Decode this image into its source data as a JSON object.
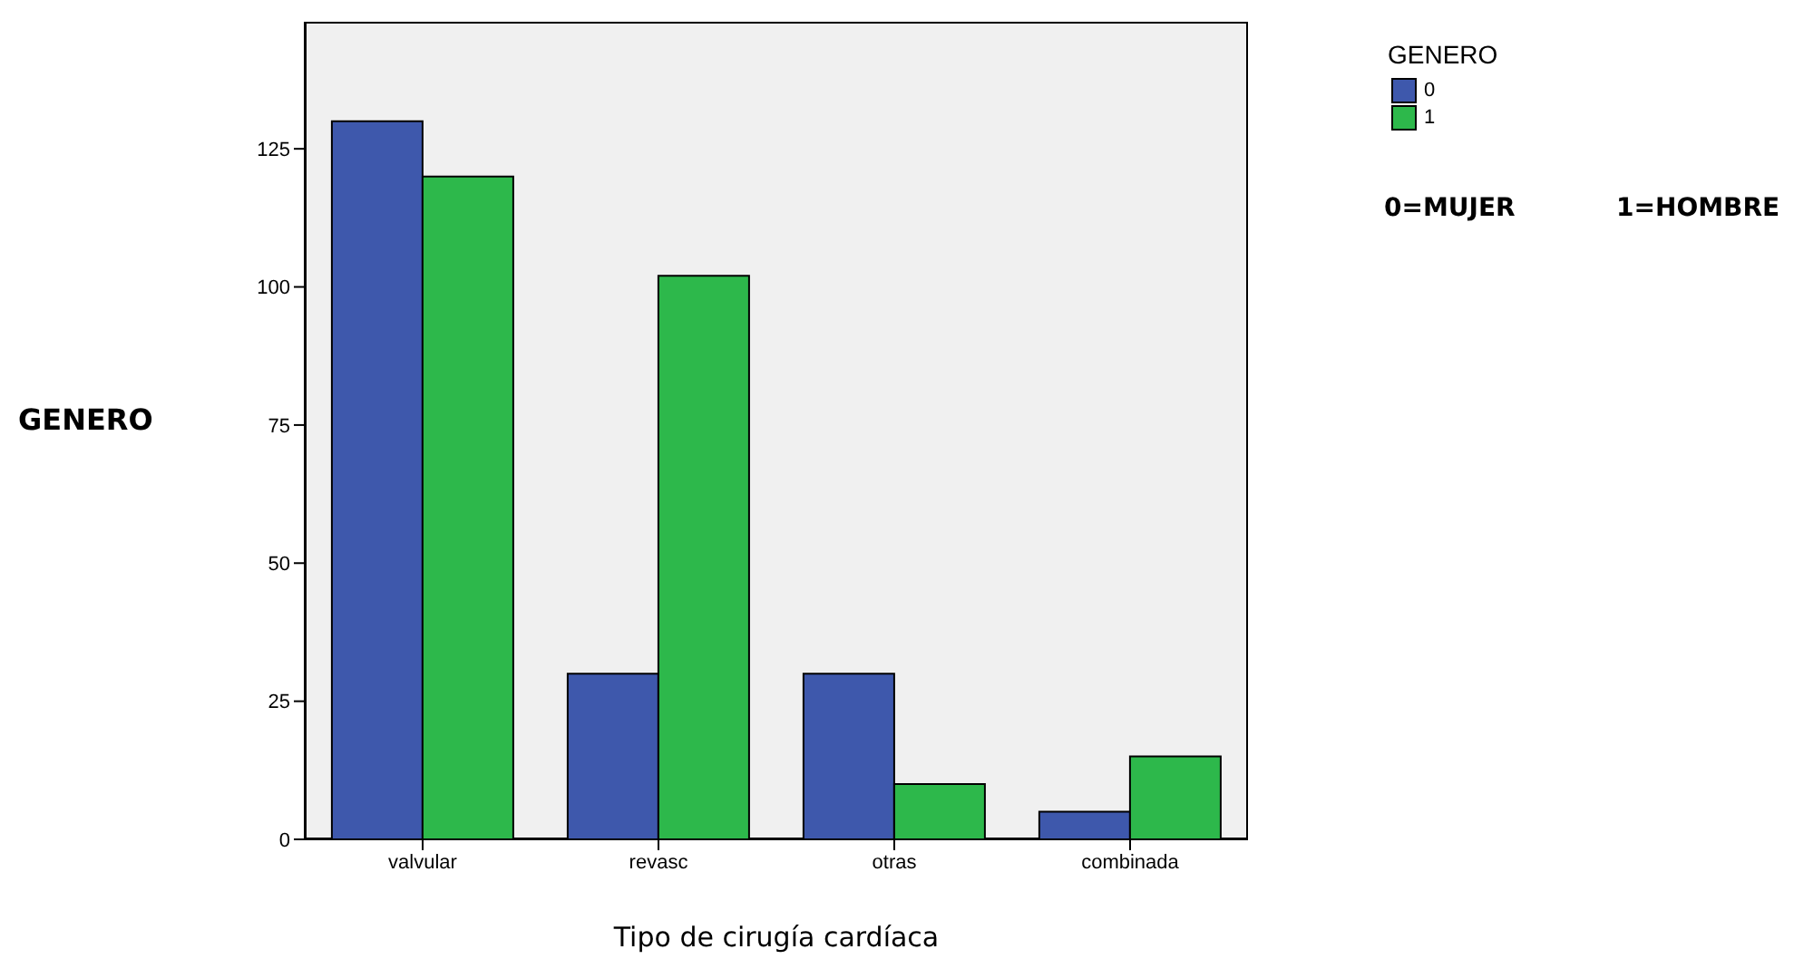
{
  "chart_data": {
    "type": "bar",
    "xlabel": "Tipo de cirugía cardíaca",
    "ylabel": "GENERO",
    "legend_title": "GENERO",
    "categories": [
      "valvular",
      "revasc",
      "otras",
      "combinada"
    ],
    "series": [
      {
        "name": "0",
        "color": "#3e58ac",
        "values": [
          130,
          30,
          30,
          5
        ]
      },
      {
        "name": "1",
        "color": "#2db84b",
        "values": [
          120,
          102,
          10,
          15
        ]
      }
    ],
    "ylim": [
      0,
      148
    ],
    "yticks": [
      0,
      25,
      50,
      75,
      100,
      125
    ],
    "legend": "top right",
    "annotations": [
      "0=MUJER",
      "1=HOMBRE"
    ]
  }
}
